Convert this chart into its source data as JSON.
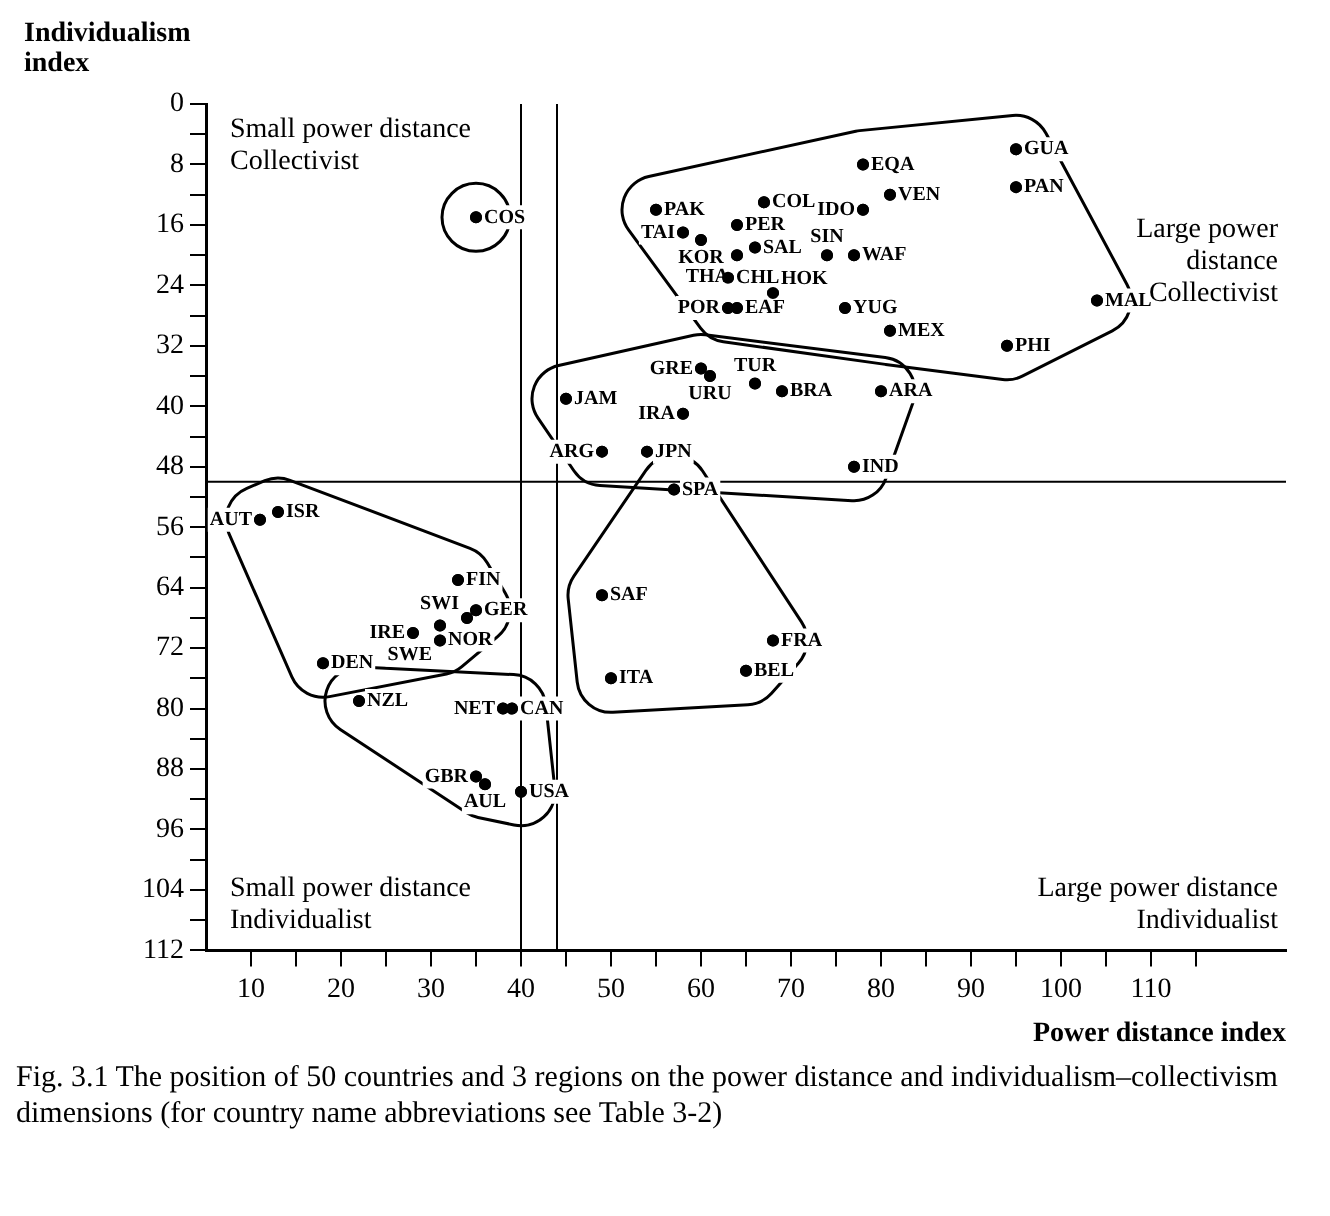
{
  "chart_data": {
    "type": "scatter",
    "title": "Fig. 3.1 The position of 50 countries and 3 regions on the power distance and individualism–collectivism dimensions (for country name abbreviations see Table 3-2)",
    "xlabel": "Power distance index",
    "ylabel": "Individualism index",
    "xlim": [
      5,
      125
    ],
    "ylim": [
      112,
      0
    ],
    "xticks": [
      10,
      {
        "value": 15,
        "label": null
      },
      20,
      {
        "value": 25,
        "label": null
      },
      30,
      {
        "value": 35,
        "label": null
      },
      40,
      {
        "value": 45,
        "label": null
      },
      50,
      {
        "value": 55,
        "label": null
      },
      60,
      {
        "value": 65,
        "label": null
      },
      70,
      {
        "value": 75,
        "label": null
      },
      80,
      {
        "value": 85,
        "label": null
      },
      90,
      {
        "value": 95,
        "label": null
      },
      100,
      {
        "value": 105,
        "label": null
      },
      110,
      {
        "value": 115,
        "label": null
      }
    ],
    "yticks": [
      0,
      {
        "value": 4,
        "label": null
      },
      8,
      {
        "value": 12,
        "label": null
      },
      16,
      {
        "value": 20,
        "label": null
      },
      24,
      {
        "value": 28,
        "label": null
      },
      32,
      {
        "value": 36,
        "label": null
      },
      40,
      {
        "value": 44,
        "label": null
      },
      48,
      {
        "value": 52,
        "label": null
      },
      56,
      {
        "value": 60,
        "label": null
      },
      64,
      {
        "value": 68,
        "label": null
      },
      72,
      {
        "value": 76,
        "label": null
      },
      80,
      {
        "value": 84,
        "label": null
      },
      88,
      {
        "value": 92,
        "label": null
      },
      96,
      {
        "value": 100,
        "label": null
      },
      104,
      {
        "value": 108,
        "label": null
      },
      112
    ],
    "grid": false,
    "legend": false,
    "marker": "circle",
    "ref_lines": [
      {
        "axis": "x",
        "value": 40,
        "color": "#000000"
      },
      {
        "axis": "x",
        "value": 44,
        "color": "#000000"
      },
      {
        "axis": "y",
        "value": 50,
        "color": "#000000"
      }
    ],
    "series": [
      {
        "color": "#000000",
        "x": [
          35
        ],
        "values": [
          15
        ]
      },
      {
        "color": "#000000",
        "x": [
          55,
          67,
          78,
          95,
          81,
          78,
          95,
          58,
          64,
          60,
          66,
          74,
          77,
          63,
          64,
          63,
          64,
          68,
          76,
          81,
          104,
          94
        ],
        "values": [
          14,
          13,
          8,
          6,
          12,
          14,
          11,
          17,
          16,
          18,
          19,
          20,
          20,
          23,
          20,
          27,
          27,
          25,
          27,
          30,
          26,
          32
        ]
      },
      {
        "color": "#000000",
        "x": [
          45,
          61,
          60,
          66,
          69,
          80,
          58,
          49,
          54,
          77
        ],
        "values": [
          39,
          36,
          35,
          37,
          38,
          38,
          41,
          46,
          46,
          48
        ]
      },
      {
        "color": "#000000",
        "x": [
          13,
          11,
          33,
          35,
          31,
          34,
          28,
          31,
          18
        ],
        "values": [
          54,
          55,
          63,
          67,
          69,
          68,
          70,
          71,
          74
        ]
      },
      {
        "color": "#000000",
        "x": [
          22,
          38,
          39,
          35,
          36,
          40
        ],
        "values": [
          79,
          80,
          80,
          89,
          90,
          91
        ]
      },
      {
        "color": "#000000",
        "x": [
          57,
          49,
          68,
          50,
          65
        ],
        "values": [
          51,
          65,
          71,
          76,
          75
        ]
      }
    ],
    "annotations": [
      "Small power distance\nCollectivist",
      "Large power\ndistance\nCollectivist",
      "Small power distance\nIndividualist",
      "Large power distance\nIndividualist",
      {
        "text": "COS",
        "x": 35,
        "y": 15
      },
      {
        "text": "PAK",
        "x": 55,
        "y": 14
      },
      {
        "text": "COL",
        "x": 67,
        "y": 13
      },
      {
        "text": "EQA",
        "x": 78,
        "y": 8
      },
      {
        "text": "GUA",
        "x": 95,
        "y": 6
      },
      {
        "text": "VEN",
        "x": 81,
        "y": 12
      },
      {
        "text": "IDO",
        "x": 78,
        "y": 14
      },
      {
        "text": "PAN",
        "x": 95,
        "y": 11
      },
      {
        "text": "TAI",
        "x": 58,
        "y": 17
      },
      {
        "text": "PER",
        "x": 64,
        "y": 16
      },
      {
        "text": "KOR",
        "x": 60,
        "y": 18
      },
      {
        "text": "SAL",
        "x": 66,
        "y": 19
      },
      {
        "text": "SIN",
        "x": 74,
        "y": 20
      },
      {
        "text": "WAF",
        "x": 77,
        "y": 20
      },
      {
        "text": "CHL",
        "x": 63,
        "y": 23
      },
      {
        "text": "THA",
        "x": 64,
        "y": 20
      },
      {
        "text": "POR",
        "x": 63,
        "y": 27
      },
      {
        "text": "EAF",
        "x": 64,
        "y": 27
      },
      {
        "text": "HOK",
        "x": 68,
        "y": 25
      },
      {
        "text": "YUG",
        "x": 76,
        "y": 27
      },
      {
        "text": "MEX",
        "x": 81,
        "y": 30
      },
      {
        "text": "MAL",
        "x": 104,
        "y": 26
      },
      {
        "text": "PHI",
        "x": 94,
        "y": 32
      },
      {
        "text": "JAM",
        "x": 45,
        "y": 39
      },
      {
        "text": "URU",
        "x": 61,
        "y": 36
      },
      {
        "text": "GRE",
        "x": 60,
        "y": 35
      },
      {
        "text": "TUR",
        "x": 66,
        "y": 37
      },
      {
        "text": "BRA",
        "x": 69,
        "y": 38
      },
      {
        "text": "ARA",
        "x": 80,
        "y": 38
      },
      {
        "text": "IRA",
        "x": 58,
        "y": 41
      },
      {
        "text": "ARG",
        "x": 49,
        "y": 46
      },
      {
        "text": "JPN",
        "x": 54,
        "y": 46
      },
      {
        "text": "IND",
        "x": 77,
        "y": 48
      },
      {
        "text": "ISR",
        "x": 13,
        "y": 54
      },
      {
        "text": "AUT",
        "x": 11,
        "y": 55
      },
      {
        "text": "FIN",
        "x": 33,
        "y": 63
      },
      {
        "text": "GER",
        "x": 35,
        "y": 67
      },
      {
        "text": "NOR",
        "x": 31,
        "y": 69
      },
      {
        "text": "SWI",
        "x": 34,
        "y": 68
      },
      {
        "text": "IRE",
        "x": 28,
        "y": 70
      },
      {
        "text": "SWE",
        "x": 31,
        "y": 71
      },
      {
        "text": "DEN",
        "x": 18,
        "y": 74
      },
      {
        "text": "NZL",
        "x": 22,
        "y": 79
      },
      {
        "text": "NET",
        "x": 38,
        "y": 80
      },
      {
        "text": "CAN",
        "x": 39,
        "y": 80
      },
      {
        "text": "GBR",
        "x": 35,
        "y": 89
      },
      {
        "text": "AUL",
        "x": 36,
        "y": 90
      },
      {
        "text": "USA",
        "x": 40,
        "y": 91
      },
      {
        "text": "SPA",
        "x": 57,
        "y": 51
      },
      {
        "text": "SAF",
        "x": 49,
        "y": 65
      },
      {
        "text": "FRA",
        "x": 68,
        "y": 71
      },
      {
        "text": "ITA",
        "x": 50,
        "y": 76
      },
      {
        "text": "BEL",
        "x": 65,
        "y": 75
      }
    ]
  }
}
